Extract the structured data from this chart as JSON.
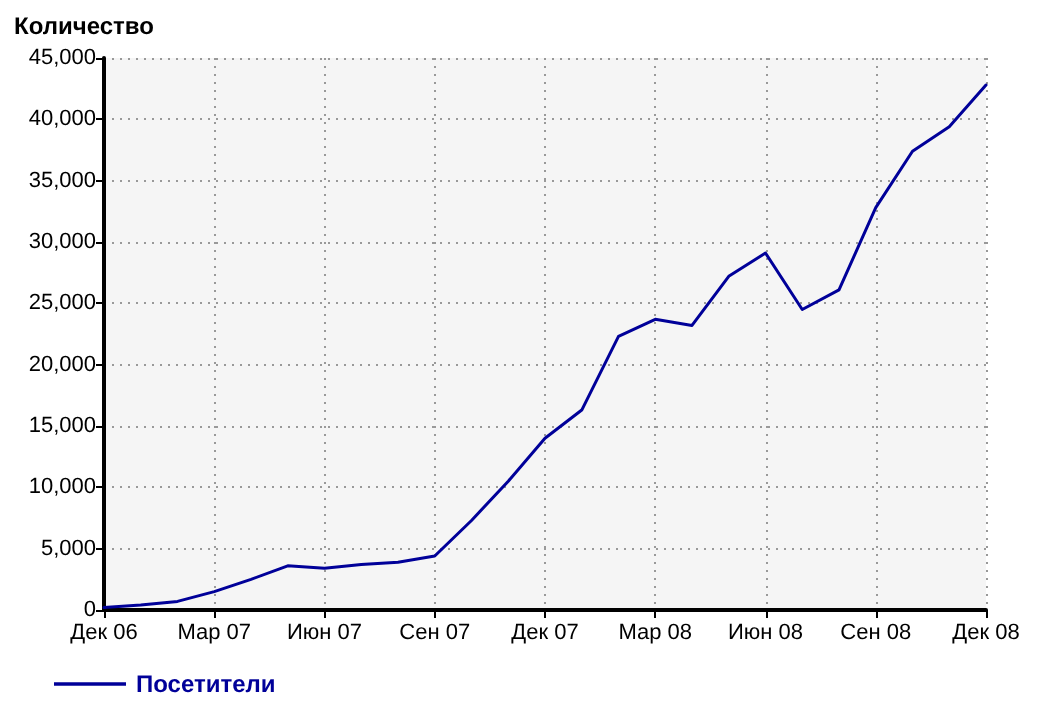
{
  "chart_data": {
    "type": "line",
    "ylabel": "Количество",
    "categories": [
      "Дек 06",
      null,
      null,
      "Мар 07",
      null,
      null,
      "Июн 07",
      null,
      null,
      "Сен 07",
      null,
      null,
      "Дек 07",
      null,
      null,
      "Мар 08",
      null,
      null,
      "Июн 08",
      null,
      null,
      "Сен 08",
      null,
      null,
      "Дек 08"
    ],
    "series": [
      {
        "name": "Посетители",
        "color": "#000099",
        "values": [
          200,
          400,
          700,
          1500,
          2500,
          3600,
          3400,
          3700,
          3900,
          4400,
          7300,
          10500,
          14000,
          16300,
          22300,
          23700,
          23200,
          27200,
          29100,
          24500,
          26100,
          32800,
          37400,
          39400,
          42800
        ]
      }
    ],
    "ylim": [
      0,
      45000
    ],
    "yticks": [
      {
        "value": 0,
        "label": "0"
      },
      {
        "value": 5000,
        "label": "5,000"
      },
      {
        "value": 10000,
        "label": "10,000"
      },
      {
        "value": 15000,
        "label": "15,000"
      },
      {
        "value": 20000,
        "label": "20,000"
      },
      {
        "value": 25000,
        "label": "25,000"
      },
      {
        "value": 30000,
        "label": "30,000"
      },
      {
        "value": 35000,
        "label": "35,000"
      },
      {
        "value": 40000,
        "label": "40,000"
      },
      {
        "value": 45000,
        "label": "45,000"
      }
    ],
    "grid": true,
    "legend": "bottom left",
    "marker": "none",
    "line_style": "solid"
  }
}
